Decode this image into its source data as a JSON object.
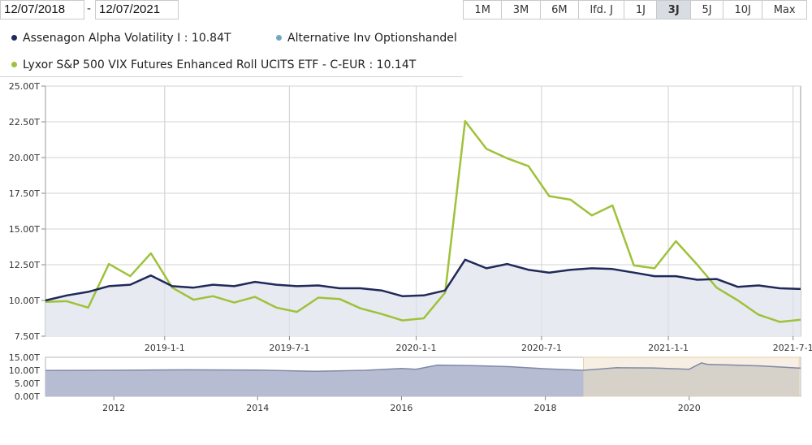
{
  "date_range": {
    "from": "12/07/2018",
    "separator": "-",
    "to": "12/07/2021"
  },
  "range_buttons": [
    {
      "label": "1M",
      "active": false
    },
    {
      "label": "3M",
      "active": false
    },
    {
      "label": "6M",
      "active": false
    },
    {
      "label": "lfd. J",
      "active": false
    },
    {
      "label": "1J",
      "active": false
    },
    {
      "label": "3J",
      "active": true
    },
    {
      "label": "5J",
      "active": false
    },
    {
      "label": "10J",
      "active": false
    },
    {
      "label": "Max",
      "active": false
    }
  ],
  "legend": [
    {
      "label": "Assenagon Alpha Volatility I : 10.84T",
      "color": "#1f2a5a"
    },
    {
      "label": "Alternative Inv Optionshandel",
      "color": "#6fa8c0"
    },
    {
      "label": "Lyxor S&P 500 VIX Futures Enhanced Roll UCITS ETF - C-EUR : 10.14T",
      "color": "#9ec23a"
    }
  ],
  "chart_data": [
    {
      "type": "line",
      "x_tick_labels": [
        "2019-1-1",
        "2019-7-1",
        "2020-1-1",
        "2020-7-1",
        "2021-1-1",
        "2021-7-1"
      ],
      "x_tick_dates": [
        "2019-01-01",
        "2019-07-01",
        "2020-01-01",
        "2020-07-01",
        "2021-01-01",
        "2021-07-01"
      ],
      "xlim": [
        "2018-07-12",
        "2021-07-12"
      ],
      "ylim": [
        7.5,
        25.0
      ],
      "y_ticks": [
        7.5,
        10.0,
        12.5,
        15.0,
        17.5,
        20.0,
        22.5,
        25.0
      ],
      "y_tick_labels": [
        "7.50T",
        "10.00T",
        "12.50T",
        "15.00T",
        "17.50T",
        "20.00T",
        "22.50T",
        "25.00T"
      ],
      "grid": true,
      "series": [
        {
          "name": "Assenagon Alpha Volatility I",
          "color": "#1f2a5a",
          "fill": "#e8eaf2",
          "x": [
            "2018-07-12",
            "2018-08-12",
            "2018-09-12",
            "2018-10-12",
            "2018-11-12",
            "2018-12-12",
            "2019-01-12",
            "2019-02-12",
            "2019-03-12",
            "2019-04-12",
            "2019-05-12",
            "2019-06-12",
            "2019-07-12",
            "2019-08-12",
            "2019-09-12",
            "2019-10-12",
            "2019-11-12",
            "2019-12-12",
            "2020-01-12",
            "2020-02-12",
            "2020-03-12",
            "2020-04-12",
            "2020-05-12",
            "2020-06-12",
            "2020-07-12",
            "2020-08-12",
            "2020-09-12",
            "2020-10-12",
            "2020-11-12",
            "2020-12-12",
            "2021-01-12",
            "2021-02-12",
            "2021-03-12",
            "2021-04-12",
            "2021-05-12",
            "2021-06-12",
            "2021-07-12"
          ],
          "values": [
            10.0,
            10.35,
            10.6,
            11.0,
            11.1,
            11.75,
            11.0,
            10.9,
            11.1,
            11.0,
            11.3,
            11.1,
            11.0,
            11.05,
            10.85,
            10.85,
            10.7,
            10.3,
            10.35,
            10.7,
            12.85,
            12.25,
            12.55,
            12.15,
            11.95,
            12.15,
            12.25,
            12.2,
            11.95,
            11.7,
            11.7,
            11.45,
            11.5,
            10.95,
            11.05,
            10.85,
            10.8
          ]
        },
        {
          "name": "Lyxor S&P 500 VIX Futures Enhanced Roll UCITS ETF - C-EUR",
          "color": "#9ec23a",
          "x": [
            "2018-07-12",
            "2018-08-12",
            "2018-09-12",
            "2018-10-12",
            "2018-11-12",
            "2018-12-12",
            "2019-01-12",
            "2019-02-12",
            "2019-03-12",
            "2019-04-12",
            "2019-05-12",
            "2019-06-12",
            "2019-07-12",
            "2019-08-12",
            "2019-09-12",
            "2019-10-12",
            "2019-11-12",
            "2019-12-12",
            "2020-01-12",
            "2020-02-12",
            "2020-03-12",
            "2020-04-12",
            "2020-05-12",
            "2020-06-12",
            "2020-07-12",
            "2020-08-12",
            "2020-09-12",
            "2020-10-12",
            "2020-11-12",
            "2020-12-12",
            "2021-01-12",
            "2021-02-12",
            "2021-03-12",
            "2021-04-12",
            "2021-05-12",
            "2021-06-12",
            "2021-07-12"
          ],
          "values": [
            9.9,
            9.95,
            9.5,
            12.55,
            11.7,
            13.3,
            10.9,
            10.05,
            10.3,
            9.85,
            10.25,
            9.5,
            9.2,
            10.2,
            10.1,
            9.45,
            9.05,
            8.6,
            8.75,
            10.55,
            22.55,
            20.6,
            19.95,
            19.4,
            17.3,
            17.05,
            15.95,
            16.65,
            12.45,
            12.25,
            14.15,
            12.5,
            10.9,
            10.0,
            9.0,
            8.5,
            8.65
          ]
        }
      ]
    },
    {
      "type": "area",
      "role": "navigator",
      "x_tick_labels": [
        "2012",
        "2014",
        "2016",
        "2018",
        "2020"
      ],
      "x_tick_years": [
        2012,
        2014,
        2016,
        2018,
        2020
      ],
      "xlim": [
        2011.05,
        2021.55
      ],
      "ylim": [
        0,
        15
      ],
      "y_ticks": [
        0,
        5,
        10,
        15
      ],
      "y_tick_labels": [
        "0.00T",
        "5.00T",
        "10.00T",
        "15.00T"
      ],
      "selected_range": [
        2018.53,
        2021.53
      ],
      "series": [
        {
          "color": "#7f89a8",
          "fill_outside": "#b6bdd2",
          "fill_inside": "#d6d1c9",
          "x": [
            2011.05,
            2012.0,
            2013.0,
            2014.0,
            2014.8,
            2015.5,
            2016.0,
            2016.2,
            2016.5,
            2017.0,
            2017.5,
            2018.0,
            2018.53,
            2019.0,
            2019.5,
            2020.0,
            2020.17,
            2020.25,
            2020.5,
            2021.0,
            2021.55
          ],
          "values": [
            9.9,
            10.0,
            10.2,
            10.1,
            9.6,
            10.0,
            10.7,
            10.4,
            12.0,
            11.8,
            11.4,
            10.6,
            10.0,
            11.0,
            10.9,
            10.4,
            12.85,
            12.3,
            12.1,
            11.7,
            10.8
          ]
        }
      ]
    }
  ]
}
